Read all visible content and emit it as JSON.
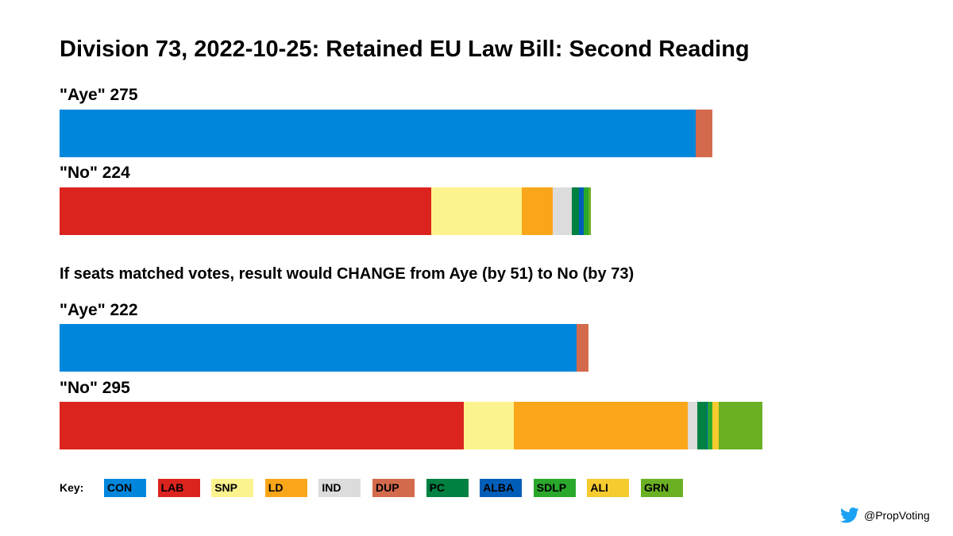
{
  "chart_data": {
    "type": "bar",
    "orientation": "horizontal-stacked",
    "title": "Division 73, 2022-10-25: Retained EU Law Bill: Second Reading",
    "subtitle": "If seats matched votes, result would CHANGE from Aye (by 51) to No (by 73)",
    "scale_max": 295,
    "party_colors": {
      "CON": "#0087DC",
      "LAB": "#DC241F",
      "SNP": "#FDF38E",
      "LD": "#FAA61A",
      "IND": "#DCDCDC",
      "DUP": "#D46A4C",
      "PC": "#008142",
      "ALBA": "#005EB8",
      "SDLP": "#2AA82C",
      "ALI": "#F6CB2F",
      "GRN": "#6AB023"
    },
    "actual": {
      "aye": {
        "label": "\"Aye\" 275",
        "segments": [
          {
            "party": "CON",
            "value": 267
          },
          {
            "party": "DUP",
            "value": 7
          }
        ]
      },
      "no": {
        "label": "\"No\" 224",
        "segments": [
          {
            "party": "LAB",
            "value": 156
          },
          {
            "party": "SNP",
            "value": 38
          },
          {
            "party": "LD",
            "value": 13
          },
          {
            "party": "IND",
            "value": 8
          },
          {
            "party": "PC",
            "value": 3
          },
          {
            "party": "ALBA",
            "value": 2
          },
          {
            "party": "SDLP",
            "value": 2
          },
          {
            "party": "GRN",
            "value": 1
          }
        ]
      }
    },
    "proportional": {
      "aye": {
        "label": "\"Aye\" 222",
        "segments": [
          {
            "party": "CON",
            "value": 217
          },
          {
            "party": "DUP",
            "value": 5
          }
        ]
      },
      "no": {
        "label": "\"No\" 295",
        "segments": [
          {
            "party": "LAB",
            "value": 169.5
          },
          {
            "party": "SNP",
            "value": 21
          },
          {
            "party": "LD",
            "value": 73
          },
          {
            "party": "IND",
            "value": 4
          },
          {
            "party": "PC",
            "value": 4
          },
          {
            "party": "ALBA",
            "value": 0.5
          },
          {
            "party": "SDLP",
            "value": 2
          },
          {
            "party": "ALI",
            "value": 2.5
          },
          {
            "party": "GRN",
            "value": 18.5
          }
        ]
      }
    },
    "legend": {
      "label": "Key:",
      "items": [
        "CON",
        "LAB",
        "SNP",
        "LD",
        "IND",
        "DUP",
        "PC",
        "ALBA",
        "SDLP",
        "ALI",
        "GRN"
      ]
    }
  },
  "credit": {
    "handle": "@PropVoting",
    "icon": "twitter-bird-icon",
    "icon_color": "#1DA1F2"
  }
}
